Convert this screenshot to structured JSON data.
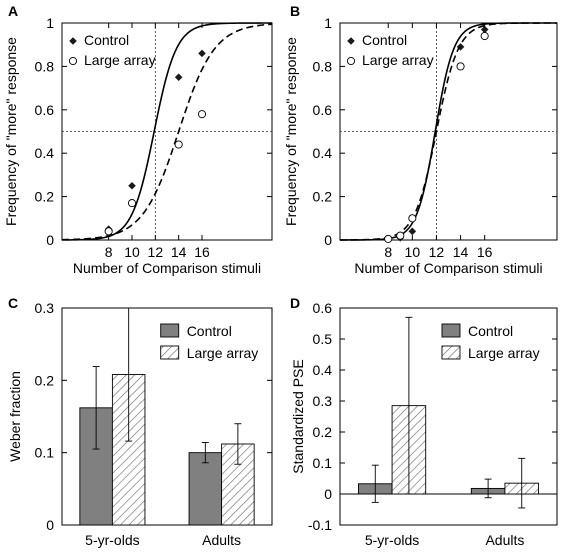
{
  "colors": {
    "control_bar": "#808080",
    "control_marker": "#1a1a1a",
    "large_array_bar": "#ffffff",
    "hatch": "#666666",
    "axis": "#000000",
    "reference_line": "#333333"
  },
  "chart_data": [
    {
      "panel": "A",
      "type": "scatter",
      "ylabel": "Frequency of \"more\" response",
      "xlabel": "Number of Comparison stimuli",
      "x_ticks": [
        8,
        10,
        12,
        14,
        16
      ],
      "y_ticks": [
        0,
        0.2,
        0.4,
        0.6,
        0.8,
        1
      ],
      "xlim": [
        4,
        22
      ],
      "ylim": [
        0,
        1
      ],
      "reference_lines": {
        "x": 12,
        "y": 0.5
      },
      "legend": "top-left",
      "series": [
        {
          "name": "Control",
          "marker": "filled-diamond",
          "fit": "solid",
          "x": [
            8,
            10,
            14,
            16
          ],
          "y": [
            0.05,
            0.25,
            0.75,
            0.86
          ],
          "fit_x50": 11.9,
          "fit_slope": 1.05
        },
        {
          "name": "Large array",
          "marker": "open-circle",
          "fit": "dashed",
          "x": [
            8,
            10,
            14,
            16
          ],
          "y": [
            0.04,
            0.17,
            0.44,
            0.58
          ],
          "fit_x50": 14.0,
          "fit_slope": 0.65
        }
      ]
    },
    {
      "panel": "B",
      "type": "scatter",
      "ylabel": "Frequency of \"more\" response",
      "xlabel": "Number of Comparison stimuli",
      "x_ticks": [
        8,
        10,
        12,
        14,
        16
      ],
      "y_ticks": [
        0,
        0.2,
        0.4,
        0.6,
        0.8,
        1
      ],
      "xlim": [
        4,
        22
      ],
      "ylim": [
        0,
        1
      ],
      "reference_lines": {
        "x": 12,
        "y": 0.5
      },
      "legend": "top-left",
      "series": [
        {
          "name": "Control",
          "marker": "filled-diamond",
          "fit": "solid",
          "x": [
            9,
            10,
            14,
            16
          ],
          "y": [
            0.01,
            0.04,
            0.89,
            0.97
          ],
          "fit_x50": 11.9,
          "fit_slope": 1.3
        },
        {
          "name": "Large array",
          "marker": "open-circle",
          "fit": "dashed",
          "x": [
            8,
            9,
            10,
            14,
            16
          ],
          "y": [
            0.005,
            0.02,
            0.1,
            0.8,
            0.94
          ],
          "fit_x50": 12.0,
          "fit_slope": 1.1
        }
      ]
    },
    {
      "panel": "C",
      "type": "bar",
      "ylabel": "Weber fraction",
      "categories": [
        "5-yr-olds",
        "Adults"
      ],
      "y_ticks": [
        "0",
        "0.1",
        "0.2",
        "0.3"
      ],
      "ylim": [
        0,
        0.3
      ],
      "legend": "top-right",
      "series": [
        {
          "name": "Control",
          "values": [
            0.162,
            0.1
          ],
          "errors": [
            0.057,
            0.014
          ]
        },
        {
          "name": "Large array",
          "values": [
            0.208,
            0.112
          ],
          "errors": [
            0.092,
            0.028
          ]
        }
      ]
    },
    {
      "panel": "D",
      "type": "bar",
      "ylabel": "Standardized PSE",
      "categories": [
        "5-yr-olds",
        "Adults"
      ],
      "y_ticks": [
        "-0.1",
        "0",
        "0.1",
        "0.2",
        "0.3",
        "0.4",
        "0.5",
        "0.6"
      ],
      "ylim": [
        -0.1,
        0.6
      ],
      "legend": "top-right",
      "series": [
        {
          "name": "Control",
          "values": [
            0.033,
            0.018
          ],
          "errors": [
            0.06,
            0.03
          ]
        },
        {
          "name": "Large array",
          "values": [
            0.285,
            0.035
          ],
          "errors": [
            0.285,
            0.08
          ]
        }
      ]
    }
  ]
}
